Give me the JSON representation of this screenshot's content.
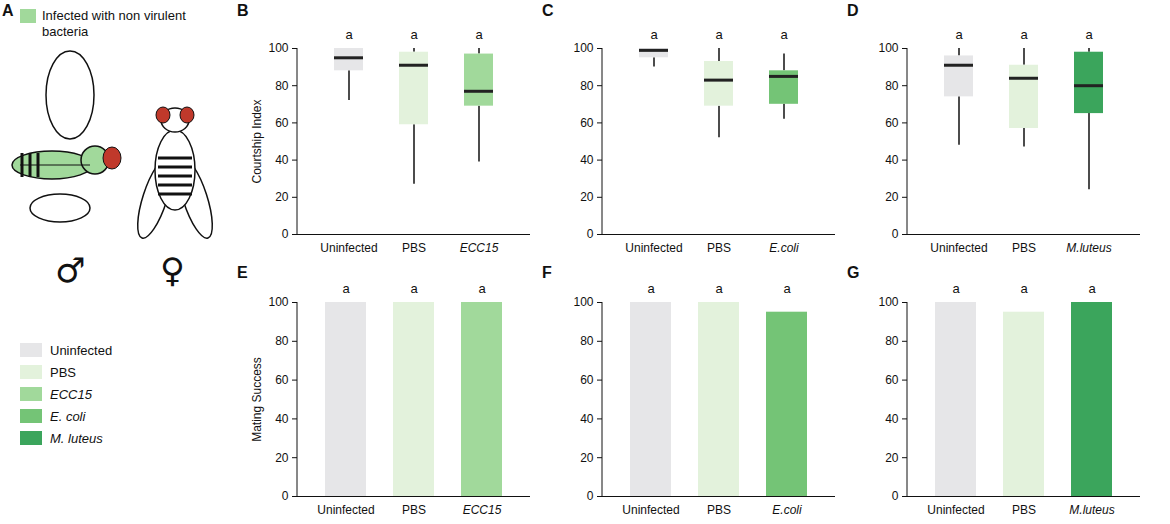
{
  "panel_a": {
    "panel_label": "A",
    "key_text": "Infected with non virulent bacteria",
    "key_color": "#a1d99b",
    "male_symbol": "♂",
    "female_symbol": "♀"
  },
  "figure_legend": [
    {
      "name": "Uninfected",
      "color": "#e6e6e8"
    },
    {
      "name": "PBS",
      "color": "#e3f2dc"
    },
    {
      "name": "ECC15",
      "color": "#a1d99b"
    },
    {
      "name": "E. coli",
      "color": "#74c476"
    },
    {
      "name": "M. luteus",
      "color": "#3ba55c"
    }
  ],
  "chart_data": [
    {
      "type": "box",
      "panel_label": "B",
      "ylabel": "Courtship Index",
      "categories": [
        "Uninfected",
        "PBS",
        "ECC15"
      ],
      "whisker_low": [
        72,
        27,
        39
      ],
      "q1": [
        88,
        59,
        69
      ],
      "median": [
        95,
        91,
        77
      ],
      "q3": [
        100,
        98,
        97
      ],
      "whisker_high": [
        100,
        100,
        100
      ],
      "colors": [
        "#e6e6e8",
        "#e3f2dc",
        "#a1d99b"
      ],
      "annotations": [
        "a",
        "a",
        "a"
      ],
      "ylim": [
        0,
        100
      ],
      "yticks": [
        0,
        20,
        40,
        60,
        80,
        100
      ]
    },
    {
      "type": "box",
      "panel_label": "C",
      "categories": [
        "Uninfected",
        "PBS",
        "E.coli"
      ],
      "whisker_low": [
        90,
        52,
        62
      ],
      "q1": [
        95,
        69,
        70
      ],
      "median": [
        99,
        83,
        85
      ],
      "q3": [
        100,
        93,
        88
      ],
      "whisker_high": [
        100,
        100,
        97
      ],
      "colors": [
        "#e6e6e8",
        "#e3f2dc",
        "#74c476"
      ],
      "annotations": [
        "a",
        "a",
        "a"
      ],
      "ylim": [
        0,
        100
      ],
      "yticks": [
        0,
        20,
        40,
        60,
        80,
        100
      ]
    },
    {
      "type": "box",
      "panel_label": "D",
      "categories": [
        "Uninfected",
        "PBS",
        "M.luteus"
      ],
      "whisker_low": [
        48,
        47,
        24
      ],
      "q1": [
        74,
        57,
        65
      ],
      "median": [
        91,
        84,
        80
      ],
      "q3": [
        96,
        91,
        98
      ],
      "whisker_high": [
        100,
        100,
        100
      ],
      "colors": [
        "#e6e6e8",
        "#e3f2dc",
        "#3ba55c"
      ],
      "annotations": [
        "a",
        "a",
        "a"
      ],
      "ylim": [
        0,
        100
      ],
      "yticks": [
        0,
        20,
        40,
        60,
        80,
        100
      ]
    },
    {
      "type": "bar",
      "panel_label": "E",
      "ylabel": "Mating Success",
      "categories": [
        "Uninfected",
        "PBS",
        "ECC15"
      ],
      "values": [
        100,
        100,
        100
      ],
      "colors": [
        "#e6e6e8",
        "#e3f2dc",
        "#a1d99b"
      ],
      "annotations": [
        "a",
        "a",
        "a"
      ],
      "ylim": [
        0,
        100
      ],
      "yticks": [
        0,
        20,
        40,
        60,
        80,
        100
      ]
    },
    {
      "type": "bar",
      "panel_label": "F",
      "categories": [
        "Uninfected",
        "PBS",
        "E.coli"
      ],
      "values": [
        100,
        100,
        95
      ],
      "colors": [
        "#e6e6e8",
        "#e3f2dc",
        "#74c476"
      ],
      "annotations": [
        "a",
        "a",
        "a"
      ],
      "ylim": [
        0,
        100
      ],
      "yticks": [
        0,
        20,
        40,
        60,
        80,
        100
      ]
    },
    {
      "type": "bar",
      "panel_label": "G",
      "categories": [
        "Uninfected",
        "PBS",
        "M.luteus"
      ],
      "values": [
        100,
        95,
        100
      ],
      "colors": [
        "#e6e6e8",
        "#e3f2dc",
        "#3ba55c"
      ],
      "annotations": [
        "a",
        "a",
        "a"
      ],
      "ylim": [
        0,
        100
      ],
      "yticks": [
        0,
        20,
        40,
        60,
        80,
        100
      ]
    }
  ]
}
